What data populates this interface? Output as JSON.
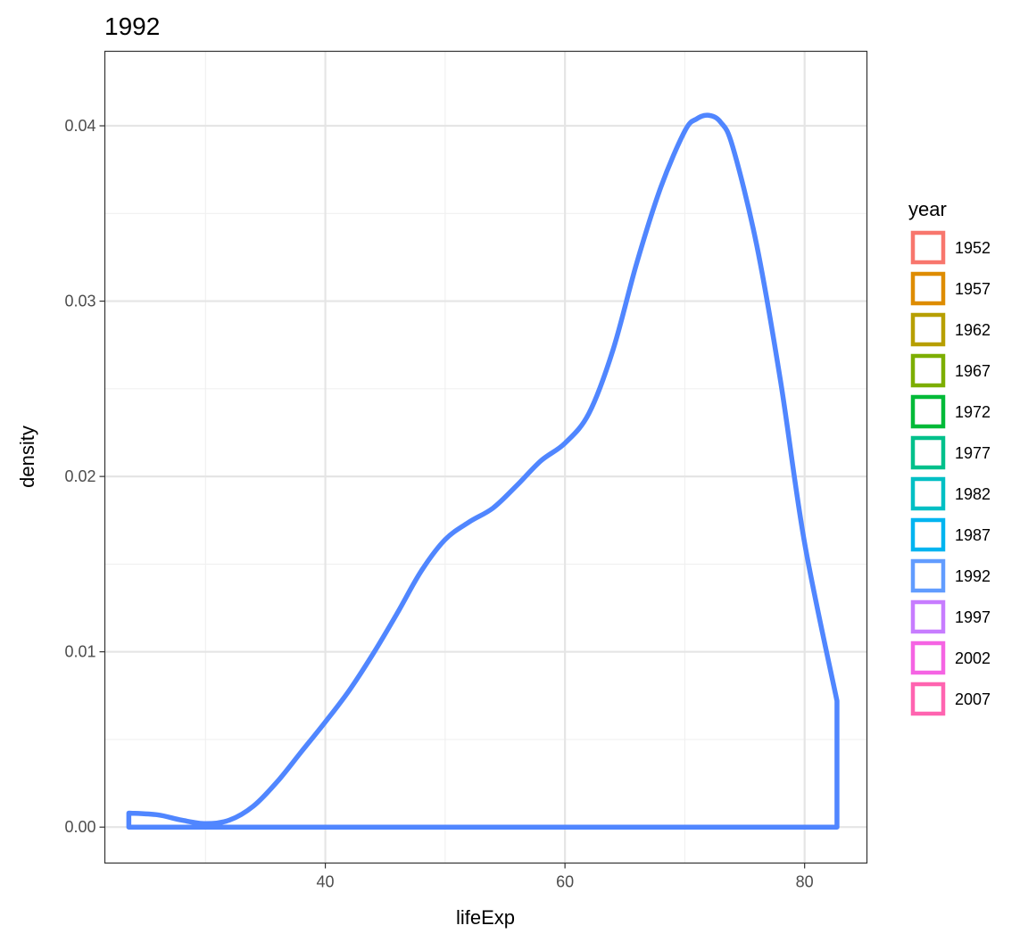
{
  "chart_data": {
    "type": "density",
    "title": "1992",
    "xlabel": "lifeExp",
    "ylabel": "density",
    "xlim": [
      21.6,
      85.2
    ],
    "ylim": [
      -0.00205,
      0.04425
    ],
    "x_ticks": [
      40,
      60,
      80
    ],
    "x_tick_labels": [
      "40",
      "60",
      "80"
    ],
    "x_minor_ticks": [
      30,
      50,
      70
    ],
    "y_ticks": [
      0.0,
      0.01,
      0.02,
      0.03,
      0.04
    ],
    "y_tick_labels": [
      "0.00",
      "0.01",
      "0.02",
      "0.03",
      "0.04"
    ],
    "y_minor_ticks": [
      0.005,
      0.015,
      0.025,
      0.035
    ],
    "grid": true,
    "legend": {
      "title": "year",
      "position": "right",
      "items": [
        {
          "label": "1952",
          "color": "#F8766D"
        },
        {
          "label": "1957",
          "color": "#DE8C00"
        },
        {
          "label": "1962",
          "color": "#B79F00"
        },
        {
          "label": "1967",
          "color": "#7CAE00"
        },
        {
          "label": "1972",
          "color": "#00BA38"
        },
        {
          "label": "1977",
          "color": "#00C08B"
        },
        {
          "label": "1982",
          "color": "#00BFC4"
        },
        {
          "label": "1987",
          "color": "#00B4F0"
        },
        {
          "label": "1992",
          "color": "#619CFF"
        },
        {
          "label": "1997",
          "color": "#C77CFF"
        },
        {
          "label": "2002",
          "color": "#F564E3"
        },
        {
          "label": "2007",
          "color": "#FF64B0"
        }
      ]
    },
    "series": [
      {
        "name": "1992",
        "color": "#5086FF",
        "x": [
          23.6,
          26,
          28,
          30,
          32,
          34,
          36,
          38,
          40,
          42,
          44,
          46,
          48,
          50,
          52,
          54,
          56,
          58,
          60,
          62,
          64,
          66,
          68,
          70,
          71,
          72,
          73,
          74,
          76,
          78,
          80,
          82.7
        ],
        "y": [
          0.0008,
          0.0007,
          0.0004,
          0.0002,
          0.0004,
          0.0012,
          0.0026,
          0.0043,
          0.006,
          0.0078,
          0.0099,
          0.0122,
          0.0146,
          0.0164,
          0.0174,
          0.0182,
          0.0195,
          0.0209,
          0.0219,
          0.0236,
          0.0272,
          0.0322,
          0.0365,
          0.0397,
          0.0404,
          0.0406,
          0.0402,
          0.0388,
          0.0332,
          0.0254,
          0.0162,
          0.0072
        ]
      }
    ]
  }
}
